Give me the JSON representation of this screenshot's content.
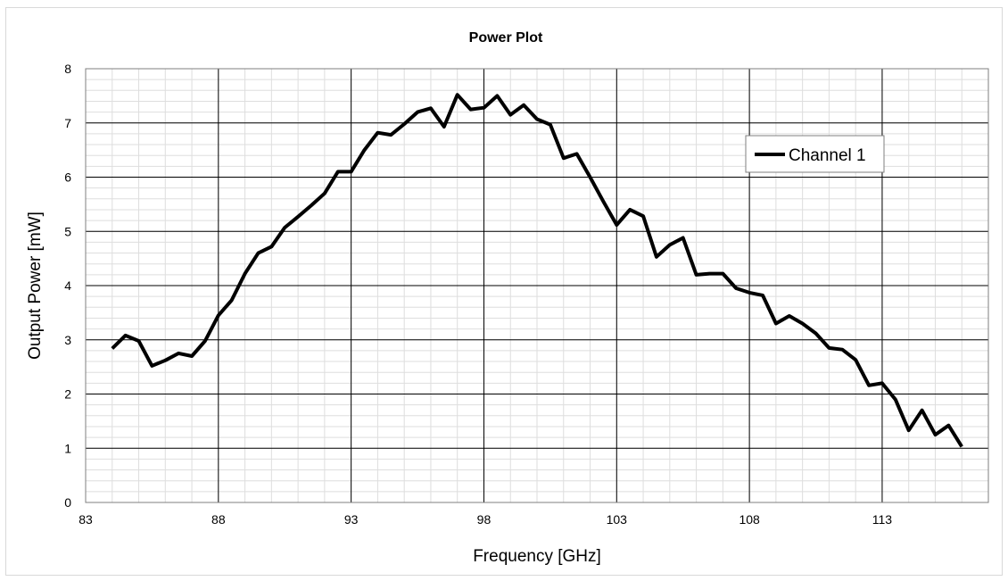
{
  "chart_data": {
    "type": "line",
    "title": "Power Plot",
    "xlabel": "Frequency [GHz]",
    "ylabel": "Output Power [mW]",
    "xlim": [
      83,
      117
    ],
    "ylim": [
      0,
      8
    ],
    "x_ticks": [
      83,
      88,
      93,
      98,
      103,
      108,
      113
    ],
    "y_ticks": [
      0,
      1,
      2,
      3,
      4,
      5,
      6,
      7,
      8
    ],
    "x_minor_step": 1,
    "y_minor_step": 0.2,
    "grid": true,
    "legend_position": "upper-right",
    "series": [
      {
        "name": "Channel 1",
        "color": "#000000",
        "points": [
          [
            84.0,
            2.84
          ],
          [
            84.5,
            3.08
          ],
          [
            85.0,
            2.98
          ],
          [
            85.5,
            2.52
          ],
          [
            86.0,
            2.62
          ],
          [
            86.5,
            2.75
          ],
          [
            87.0,
            2.7
          ],
          [
            87.5,
            2.98
          ],
          [
            88.0,
            3.45
          ],
          [
            88.5,
            3.73
          ],
          [
            89.0,
            4.22
          ],
          [
            89.5,
            4.6
          ],
          [
            90.0,
            4.72
          ],
          [
            90.5,
            5.07
          ],
          [
            91.0,
            5.27
          ],
          [
            91.5,
            5.48
          ],
          [
            92.0,
            5.7
          ],
          [
            92.5,
            6.1
          ],
          [
            93.0,
            6.1
          ],
          [
            93.5,
            6.5
          ],
          [
            94.0,
            6.82
          ],
          [
            94.5,
            6.78
          ],
          [
            95.0,
            6.98
          ],
          [
            95.5,
            7.2
          ],
          [
            96.0,
            7.27
          ],
          [
            96.5,
            6.93
          ],
          [
            97.0,
            7.52
          ],
          [
            97.5,
            7.25
          ],
          [
            98.0,
            7.28
          ],
          [
            98.5,
            7.5
          ],
          [
            99.0,
            7.15
          ],
          [
            99.5,
            7.33
          ],
          [
            100.0,
            7.07
          ],
          [
            100.5,
            6.97
          ],
          [
            101.0,
            6.35
          ],
          [
            101.5,
            6.43
          ],
          [
            102.0,
            6.0
          ],
          [
            102.5,
            5.55
          ],
          [
            103.0,
            5.12
          ],
          [
            103.5,
            5.4
          ],
          [
            104.0,
            5.28
          ],
          [
            104.5,
            4.53
          ],
          [
            105.0,
            4.75
          ],
          [
            105.5,
            4.88
          ],
          [
            106.0,
            4.2
          ],
          [
            106.5,
            4.22
          ],
          [
            107.0,
            4.22
          ],
          [
            107.5,
            3.95
          ],
          [
            108.0,
            3.87
          ],
          [
            108.5,
            3.82
          ],
          [
            109.0,
            3.3
          ],
          [
            109.5,
            3.44
          ],
          [
            110.0,
            3.3
          ],
          [
            110.5,
            3.12
          ],
          [
            111.0,
            2.85
          ],
          [
            111.5,
            2.82
          ],
          [
            112.0,
            2.63
          ],
          [
            112.5,
            2.16
          ],
          [
            113.0,
            2.2
          ],
          [
            113.5,
            1.9
          ],
          [
            114.0,
            1.33
          ],
          [
            114.5,
            1.7
          ],
          [
            115.0,
            1.25
          ],
          [
            115.5,
            1.42
          ],
          [
            116.0,
            1.03
          ]
        ]
      }
    ]
  }
}
